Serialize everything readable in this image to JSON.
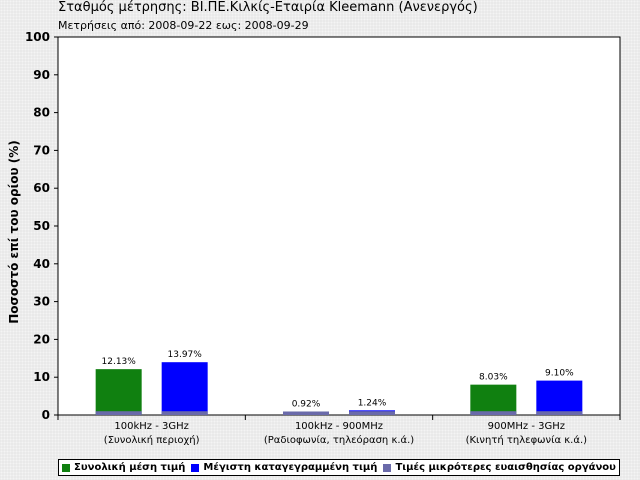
{
  "chart_data": {
    "type": "bar",
    "title": "Σταθμός μέτρησης: ΒΙ.ΠΕ.Κιλκίς-Εταιρία Kleemann (Ανενεργός)",
    "subtitle": "Μετρήσεις από: 2008-09-22 εως: 2008-09-29",
    "ylabel": "Ποσοστό επί του ορίου (%)",
    "xlabel": "",
    "ylim": [
      0,
      100
    ],
    "yticks": [
      "0",
      "10",
      "20",
      "30",
      "40",
      "50",
      "60",
      "70",
      "80",
      "90",
      "100"
    ],
    "grid": false,
    "legend_position": "bottom",
    "categories": [
      {
        "line1": "100kHz - 3GHz",
        "line2": "(Συνολική περιοχή)"
      },
      {
        "line1": "100kHz - 900MHz",
        "line2": "(Ραδιοφωνία, τηλεόραση κ.ά.)"
      },
      {
        "line1": "900MHz - 3GHz",
        "line2": "(Κινητή τηλεφωνία κ.ά.)"
      }
    ],
    "series": [
      {
        "name": "Συνολική μέση τιμή",
        "color": "#108010",
        "values": [
          12.13,
          0.92,
          8.03
        ],
        "labels": [
          "12.13%",
          "0.92%",
          "8.03%"
        ]
      },
      {
        "name": "Μέγιστη καταγεγραμμένη τιμή",
        "color": "#0000ff",
        "values": [
          13.97,
          1.24,
          9.1
        ],
        "labels": [
          "13.97%",
          "1.24%",
          "9.10%"
        ]
      },
      {
        "name": "Τιμές μικρότερες ευαισθησίας οργάνου",
        "color": "#6a6aaa",
        "values": [
          1,
          1,
          1
        ]
      }
    ]
  }
}
